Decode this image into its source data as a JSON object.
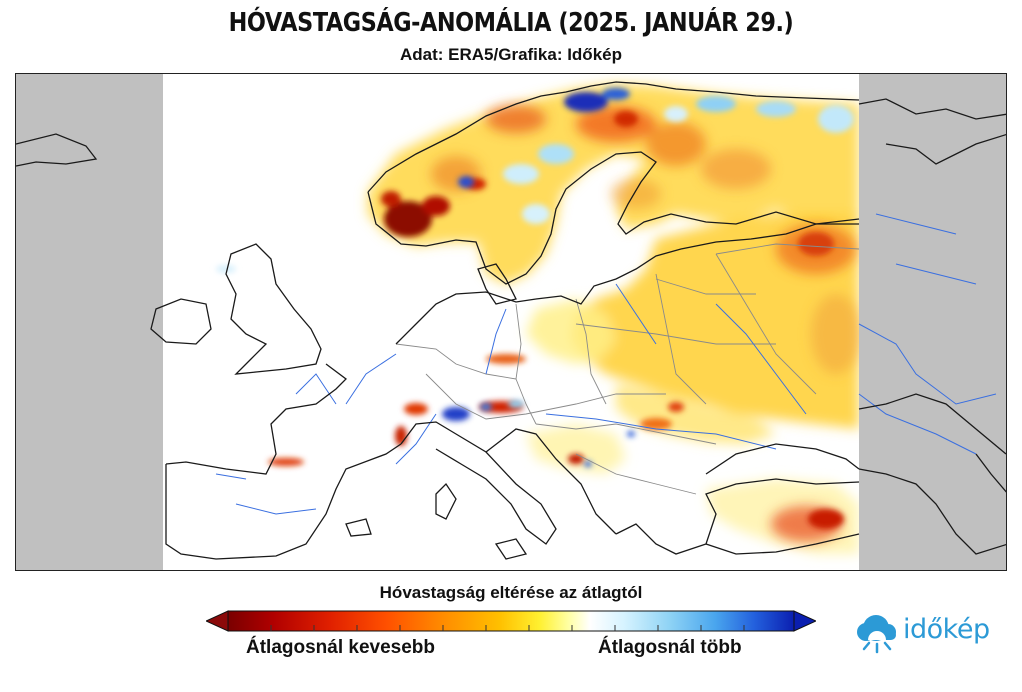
{
  "header": {
    "title": "HÓVASTAGSÁG-ANOMÁLIA (2025. JANUÁR 29.)",
    "subtitle": "Adat: ERA5/Grafika: Időkép"
  },
  "legend": {
    "title": "Hóvastagság eltérése az átlagtól",
    "low_label": "Átlagosnál kevesebb",
    "high_label": "Átlagosnál több",
    "colors": [
      "#7a0000",
      "#b00000",
      "#e02000",
      "#ff5000",
      "#ff8c00",
      "#ffc000",
      "#fff030",
      "#ffffa0",
      "#ffffff",
      "#d6f3ff",
      "#8fd3f5",
      "#4aa6ee",
      "#2360dd",
      "#0b1fb0"
    ]
  },
  "map": {
    "region": "Europe",
    "no_data_color": "#c0c0c0",
    "deficit_color": "#e8401a",
    "surplus_color": "#1e50c8"
  },
  "branding": {
    "logo_text": "időkép",
    "logo_color": "#2c9ad6"
  }
}
